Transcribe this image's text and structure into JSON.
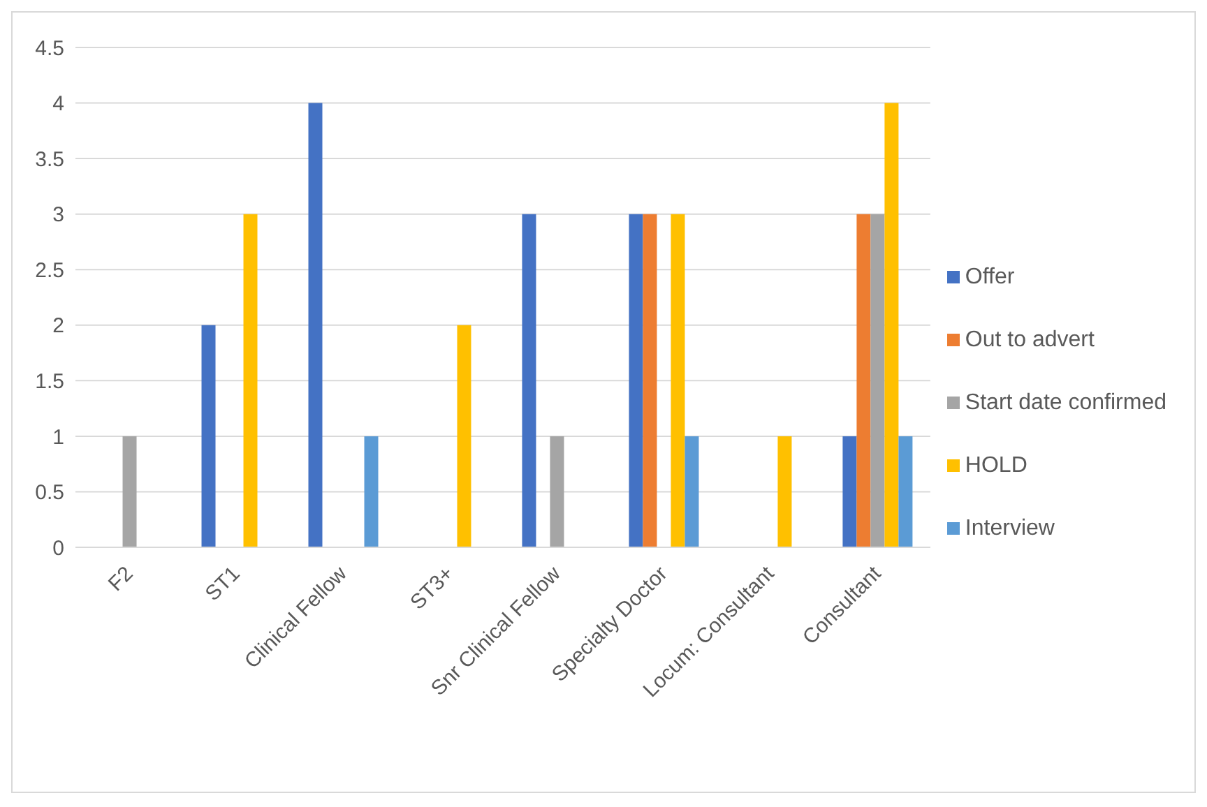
{
  "chart_data": {
    "type": "bar",
    "categories": [
      "F2",
      "ST1",
      "Clinical Fellow",
      "ST3+",
      "Snr Clinical Fellow",
      "Specialty Doctor",
      "Locum: Consultant",
      "Consultant"
    ],
    "series": [
      {
        "name": "Offer",
        "color": "#4472c4",
        "values": [
          0,
          2,
          4,
          0,
          3,
          3,
          0,
          1
        ]
      },
      {
        "name": "Out to advert",
        "color": "#ed7d31",
        "values": [
          0,
          0,
          0,
          0,
          0,
          3,
          0,
          3
        ]
      },
      {
        "name": "Start date confirmed",
        "color": "#a5a5a5",
        "values": [
          1,
          0,
          0,
          0,
          1,
          0,
          0,
          3
        ]
      },
      {
        "name": "HOLD",
        "color": "#ffc000",
        "values": [
          0,
          3,
          0,
          2,
          0,
          3,
          1,
          4
        ]
      },
      {
        "name": "Interview",
        "color": "#5b9bd5",
        "values": [
          0,
          0,
          1,
          0,
          0,
          1,
          0,
          1
        ]
      }
    ],
    "ylim": [
      0,
      4.5
    ],
    "yticks": [
      0,
      0.5,
      1,
      1.5,
      2,
      2.5,
      3,
      3.5,
      4,
      4.5
    ],
    "grid": "y",
    "legend": "right"
  }
}
